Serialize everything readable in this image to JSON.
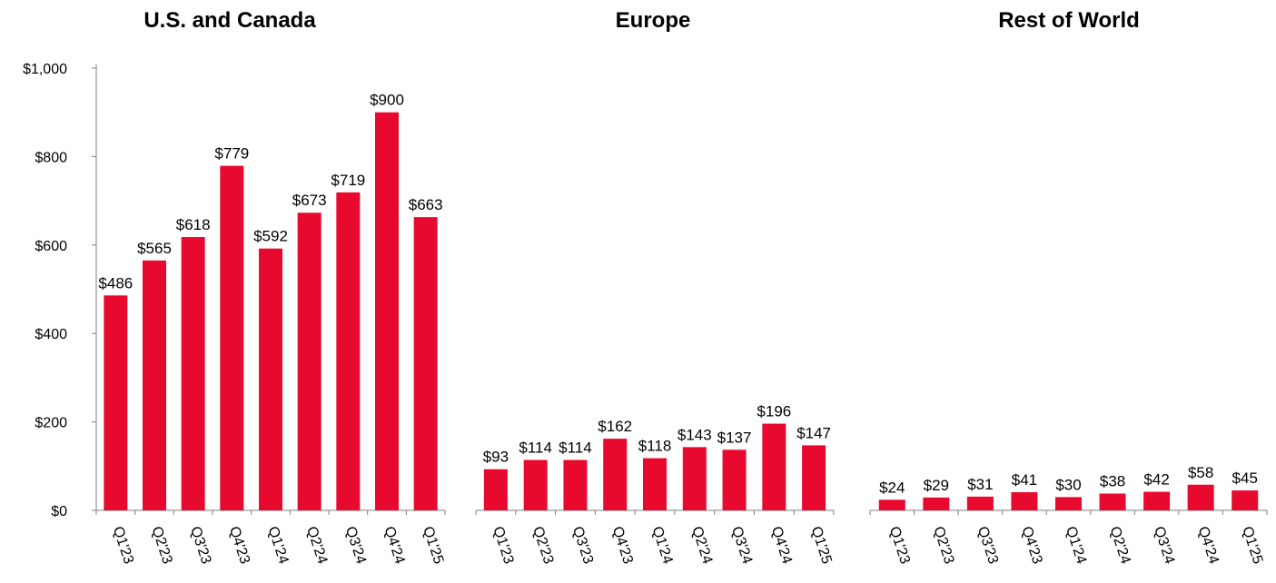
{
  "colors": {
    "bar": "#E8092E",
    "axis": "#7f7f7f",
    "text": "#000000"
  },
  "value_prefix": "$",
  "chart_data": [
    {
      "type": "bar",
      "title": "U.S. and Canada",
      "categories": [
        "Q1'23",
        "Q2'23",
        "Q3'23",
        "Q4'23",
        "Q1'24",
        "Q2'24",
        "Q3'24",
        "Q4'24",
        "Q1'25"
      ],
      "values": [
        486,
        565,
        618,
        779,
        592,
        673,
        719,
        900,
        663
      ],
      "ylim": [
        0,
        1000
      ],
      "yticks": [
        0,
        200,
        400,
        600,
        800,
        1000
      ],
      "ytick_labels": [
        "$0",
        "$200",
        "$400",
        "$600",
        "$800",
        "$1,000"
      ],
      "show_y_axis": true,
      "grid": false
    },
    {
      "type": "bar",
      "title": "Europe",
      "categories": [
        "Q1'23",
        "Q2'23",
        "Q3'23",
        "Q4'23",
        "Q1'24",
        "Q2'24",
        "Q3'24",
        "Q4'24",
        "Q1'25"
      ],
      "values": [
        93,
        114,
        114,
        162,
        118,
        143,
        137,
        196,
        147
      ],
      "ylim": [
        0,
        1000
      ],
      "show_y_axis": false,
      "grid": false
    },
    {
      "type": "bar",
      "title": "Rest of World",
      "categories": [
        "Q1'23",
        "Q2'23",
        "Q3'23",
        "Q4'23",
        "Q1'24",
        "Q2'24",
        "Q3'24",
        "Q4'24",
        "Q1'25"
      ],
      "values": [
        24,
        29,
        31,
        41,
        30,
        38,
        42,
        58,
        45
      ],
      "ylim": [
        0,
        1000
      ],
      "show_y_axis": false,
      "grid": false
    }
  ]
}
